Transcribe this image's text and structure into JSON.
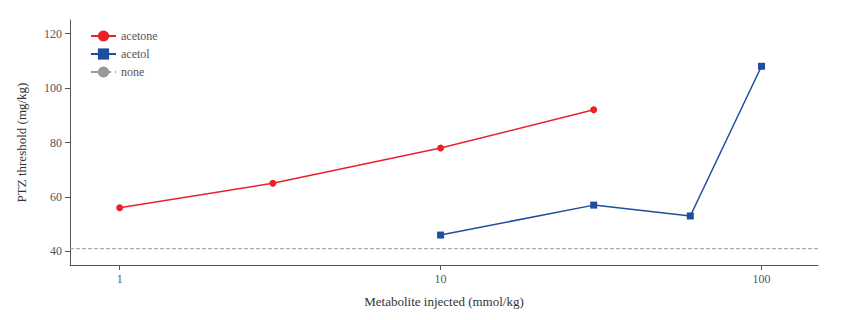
{
  "chart_data": {
    "type": "line",
    "xlabel": "Metabolite injected (mmol/kg)",
    "ylabel": "PTZ threshold (mg/kg)",
    "series": [
      {
        "name": "acetone",
        "color": "#e8212a",
        "marker": "circle",
        "x": [
          1,
          3,
          10,
          30
        ],
        "values": [
          56,
          65,
          78,
          92
        ]
      },
      {
        "name": "acetol",
        "color": "#1f4e9e",
        "marker": "square",
        "x": [
          10,
          30,
          60,
          100
        ],
        "values": [
          46,
          57,
          53,
          108
        ]
      },
      {
        "name": "none",
        "color": "#999999",
        "type": "hline",
        "line_style": "dashed",
        "values": [
          41
        ]
      }
    ],
    "log": "x",
    "xlim": [
      0.7,
      150
    ],
    "xticks": [
      1,
      10,
      100
    ],
    "ylim": [
      35,
      125
    ],
    "yticks": [
      40,
      60,
      80,
      100,
      120
    ],
    "grid": false,
    "legend": "upper left"
  }
}
